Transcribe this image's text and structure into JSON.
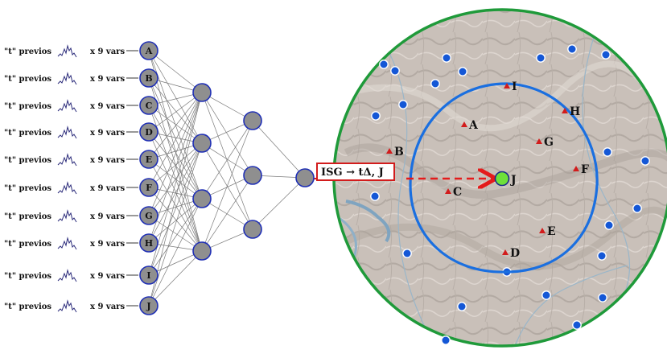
{
  "diagram": {
    "inputs": [
      {
        "prefix": "\"t\" previos",
        "mult": "x 9 vars",
        "letter": "A"
      },
      {
        "prefix": "\"t\" previos",
        "mult": "x 9 vars",
        "letter": "B"
      },
      {
        "prefix": "\"t\" previos",
        "mult": "x 9 vars",
        "letter": "C"
      },
      {
        "prefix": "\"t\" previos",
        "mult": "x 9 vars",
        "letter": "D"
      },
      {
        "prefix": "\"t\" previos",
        "mult": "x 9 vars",
        "letter": "E"
      },
      {
        "prefix": "\"t\" previos",
        "mult": "x 9 vars",
        "letter": "F"
      },
      {
        "prefix": "\"t\" previos",
        "mult": "x 9 vars",
        "letter": "G"
      },
      {
        "prefix": "\"t\" previos",
        "mult": "x 9 vars",
        "letter": "H"
      },
      {
        "prefix": "\"t\" previos",
        "mult": "x 9 vars",
        "letter": "I"
      },
      {
        "prefix": "\"t\" previos",
        "mult": "x 9 vars",
        "letter": "J"
      }
    ],
    "hidden_layer_1_count": 4,
    "hidden_layer_2_count": 3,
    "output_count": 1,
    "output_label": "ISG → tΔ, J",
    "target_station": "J",
    "stations": [
      "A",
      "B",
      "C",
      "D",
      "E",
      "F",
      "G",
      "H",
      "I"
    ],
    "colors": {
      "node_fill": "#8f8f8f",
      "node_stroke": "#1f2fb5",
      "outer_circle": "#1f9a3a",
      "radius_circle": "#1a6fe0",
      "station_marker": "#d21c1c",
      "target_marker": "#6ee03a",
      "arrow": "#e41b1b",
      "blue_dot": "#1457d6"
    }
  }
}
